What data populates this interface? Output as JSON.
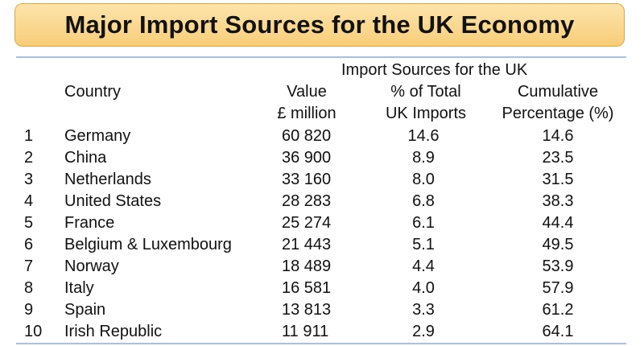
{
  "title": "Major Import Sources for the UK Economy",
  "table": {
    "group_header": "Import Sources for the UK",
    "columns": {
      "country": "Country",
      "value": [
        "Value",
        "£ million"
      ],
      "share": [
        "% of Total",
        "UK Imports"
      ],
      "cumulative": [
        "Cumulative",
        "Percentage (%)"
      ]
    },
    "rows": [
      {
        "rank": "1",
        "country": "Germany",
        "value": "60 820",
        "share": "14.6",
        "cumulative": "14.6"
      },
      {
        "rank": "2",
        "country": "China",
        "value": "36 900",
        "share": "8.9",
        "cumulative": "23.5"
      },
      {
        "rank": "3",
        "country": "Netherlands",
        "value": "33 160",
        "share": "8.0",
        "cumulative": "31.5"
      },
      {
        "rank": "4",
        "country": "United States",
        "value": "28 283",
        "share": "6.8",
        "cumulative": "38.3"
      },
      {
        "rank": "5",
        "country": "France",
        "value": "25 274",
        "share": "6.1",
        "cumulative": "44.4"
      },
      {
        "rank": "6",
        "country": "Belgium & Luxembourg",
        "value": "21 443",
        "share": "5.1",
        "cumulative": "49.5"
      },
      {
        "rank": "7",
        "country": "Norway",
        "value": "18 489",
        "share": "4.4",
        "cumulative": "53.9"
      },
      {
        "rank": "8",
        "country": "Italy",
        "value": "16 581",
        "share": "4.0",
        "cumulative": "57.9"
      },
      {
        "rank": "9",
        "country": "Spain",
        "value": "13 813",
        "share": "3.3",
        "cumulative": "61.2"
      },
      {
        "rank": "10",
        "country": "Irish Republic",
        "value": "11 911",
        "share": "2.9",
        "cumulative": "64.1"
      }
    ]
  },
  "colors": {
    "title_fill": "#f8cd78",
    "title_border": "#e2a83c",
    "rule": "#a8c1dc"
  }
}
